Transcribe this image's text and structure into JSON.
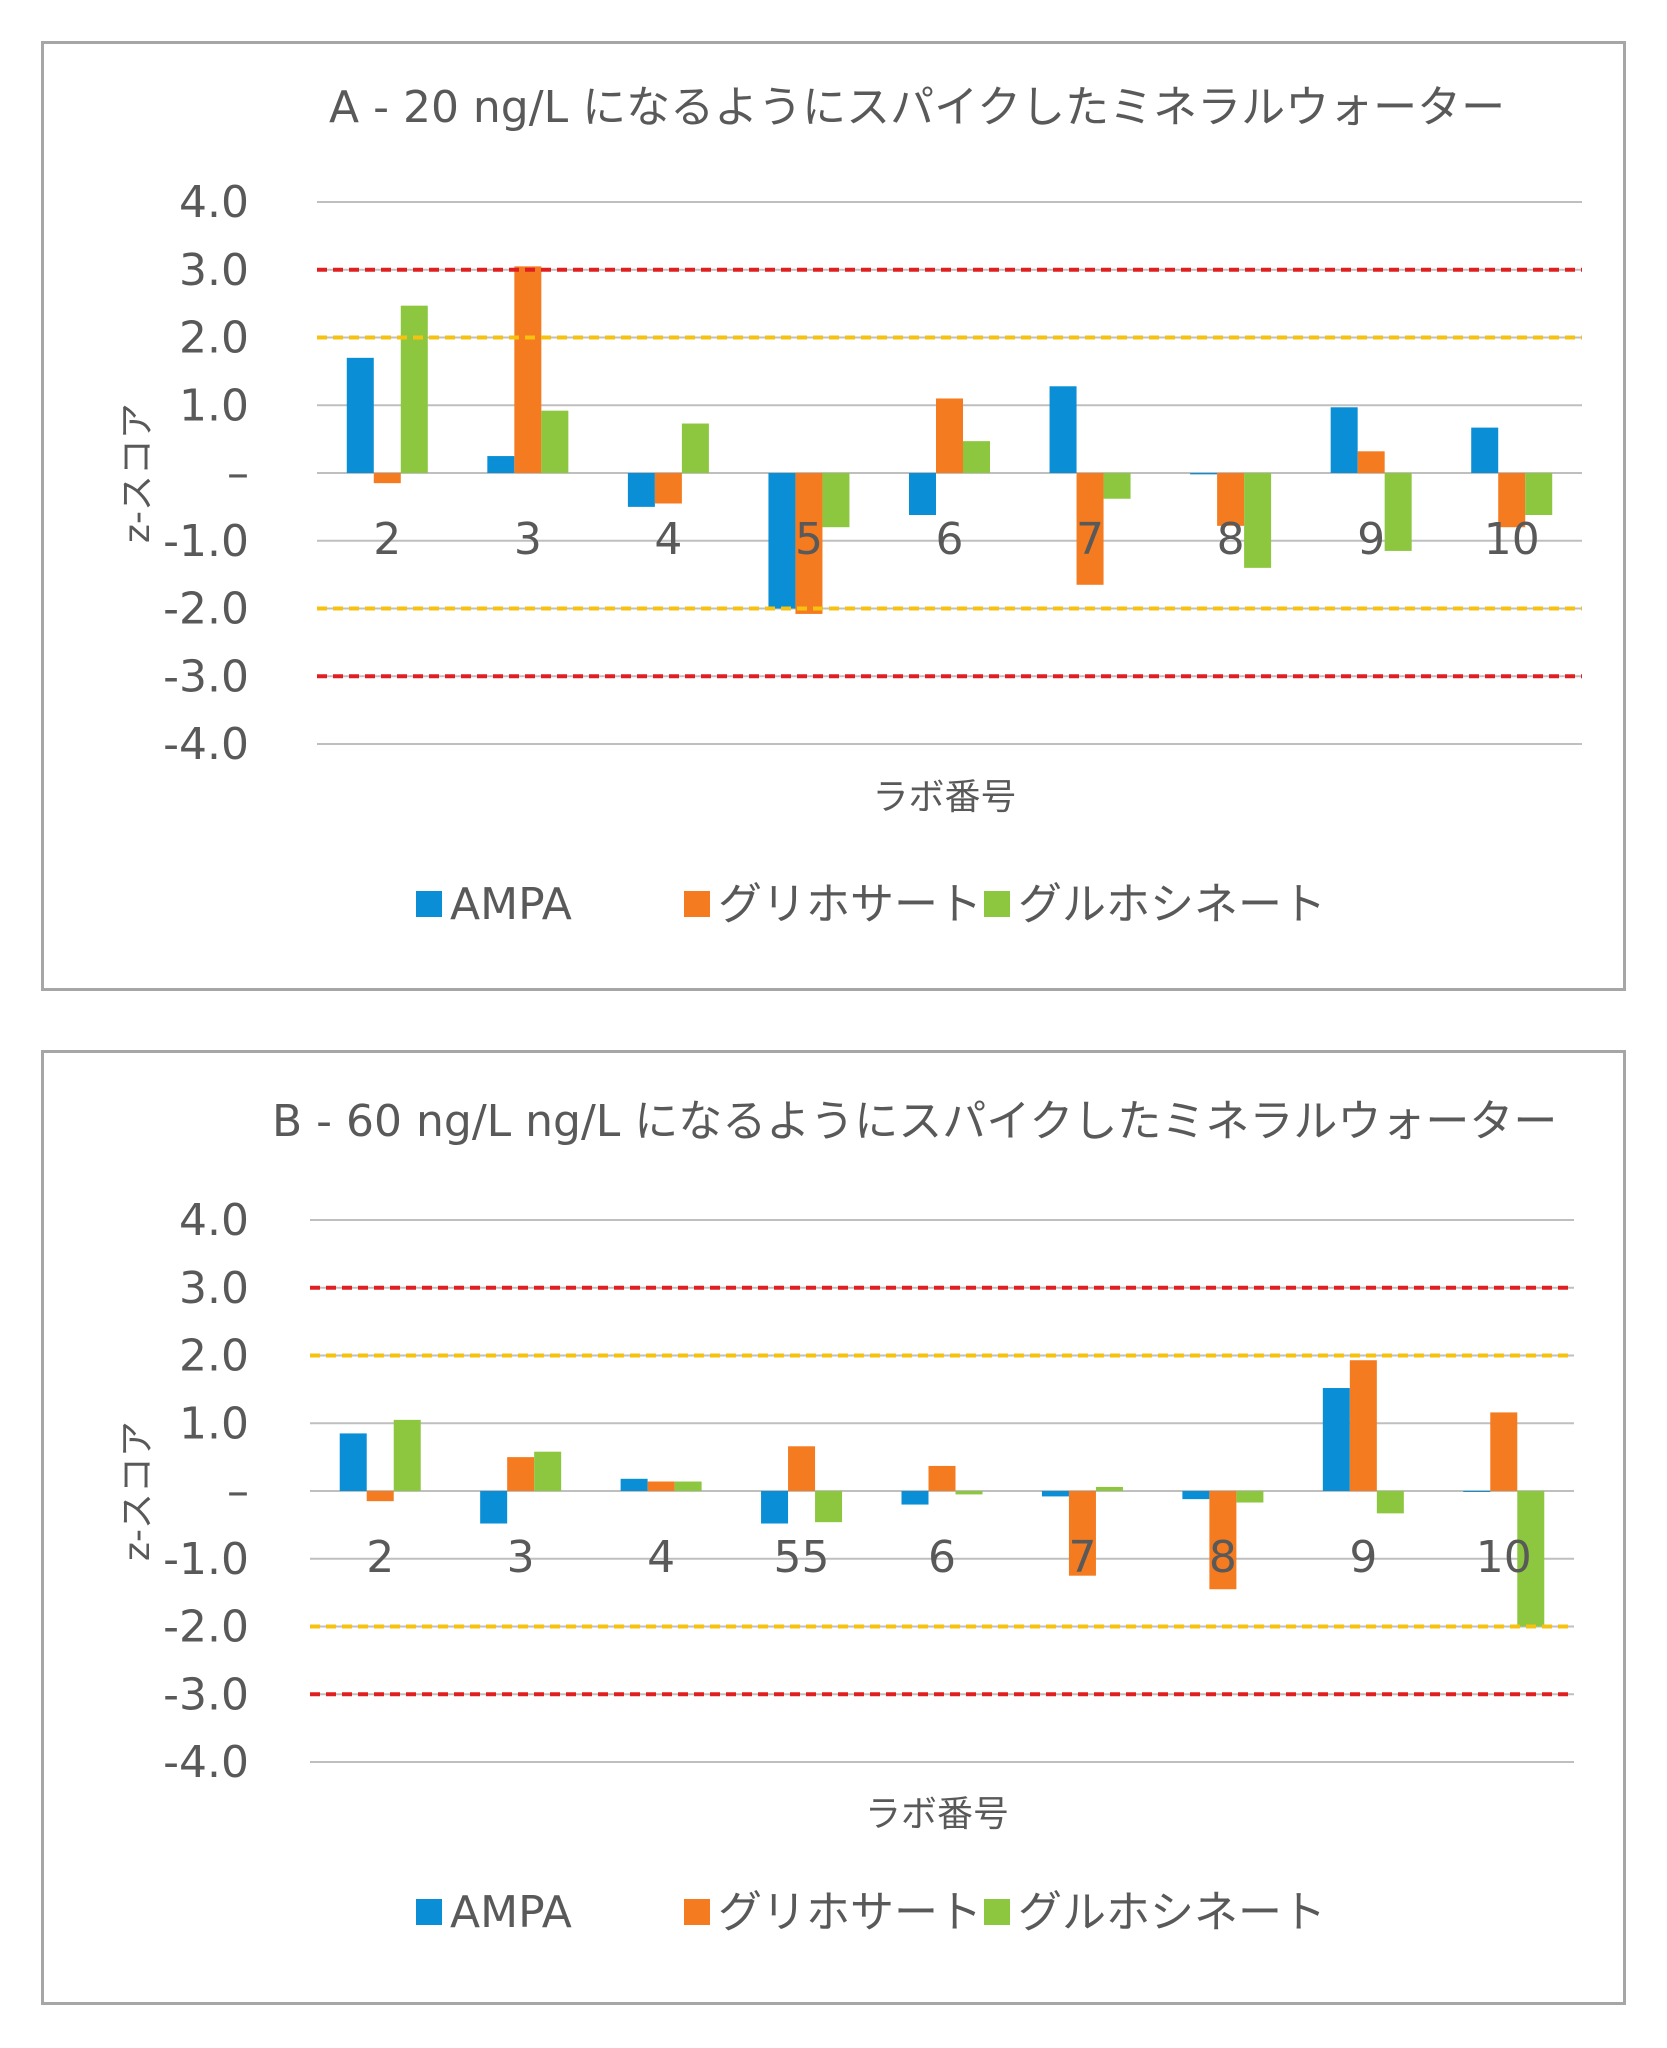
{
  "legend": [
    {
      "name": "AMPA",
      "color": "#0a8fd6"
    },
    {
      "name": "グリホサート",
      "color": "#f47b20"
    },
    {
      "name": "グルホシネート",
      "color": "#8dc63f"
    }
  ],
  "colors": {
    "red_line": "#e02020",
    "yellow_line": "#f6c20f",
    "grid": "#bfbfbf",
    "axis": "#bfbfbf"
  },
  "chart_data": [
    {
      "type": "bar",
      "title": "A - 20 ng/L になるようにスパイクしたミネラルウォーター",
      "xlabel": "ラボ番号",
      "ylabel": "z-スコア",
      "ylim": [
        -4,
        4
      ],
      "yticks": [
        "4.0",
        "3.0",
        "2.0",
        "1.0",
        "–",
        "-1.0",
        "-2.0",
        "-3.0",
        "-4.0"
      ],
      "categories": [
        "2",
        "3",
        "4",
        "5",
        "6",
        "7",
        "8",
        "9",
        "10"
      ],
      "reference_lines": {
        "red": [
          3,
          -3
        ],
        "yellow": [
          2,
          -2
        ]
      },
      "series": [
        {
          "name": "AMPA",
          "values": [
            1.7,
            0.25,
            -0.5,
            -2.0,
            -0.62,
            1.28,
            -0.02,
            0.97,
            0.67
          ]
        },
        {
          "name": "グリホサート",
          "values": [
            -0.15,
            3.05,
            -0.45,
            -2.08,
            1.1,
            -1.65,
            -0.78,
            0.32,
            -0.8
          ]
        },
        {
          "name": "グルホシネート",
          "values": [
            2.47,
            0.92,
            0.73,
            -0.8,
            0.47,
            -0.38,
            -1.4,
            -1.15,
            -0.62
          ]
        }
      ]
    },
    {
      "type": "bar",
      "title": "B - 60 ng/L ng/L になるようにスパイクしたミネラルウォーター",
      "xlabel": "ラボ番号",
      "ylabel": "z-スコア",
      "ylim": [
        -4,
        4
      ],
      "yticks": [
        "4.0",
        "3.0",
        "2.0",
        "1.0",
        "–",
        "-1.0",
        "-2.0",
        "-3.0",
        "-4.0"
      ],
      "categories": [
        "2",
        "3",
        "4",
        "55",
        "6",
        "7",
        "8",
        "9",
        "10"
      ],
      "reference_lines": {
        "red": [
          3,
          -3
        ],
        "yellow": [
          2,
          -2
        ]
      },
      "series": [
        {
          "name": "AMPA",
          "values": [
            0.85,
            -0.48,
            0.18,
            -0.48,
            -0.2,
            -0.08,
            -0.12,
            1.52,
            -0.01
          ]
        },
        {
          "name": "グリホサート",
          "values": [
            -0.15,
            0.5,
            0.14,
            0.66,
            0.37,
            -1.25,
            -1.45,
            1.93,
            1.16
          ]
        },
        {
          "name": "グルホシネート",
          "values": [
            1.05,
            0.58,
            0.14,
            -0.46,
            -0.05,
            0.06,
            -0.17,
            -0.33,
            -2.0
          ]
        }
      ]
    }
  ]
}
